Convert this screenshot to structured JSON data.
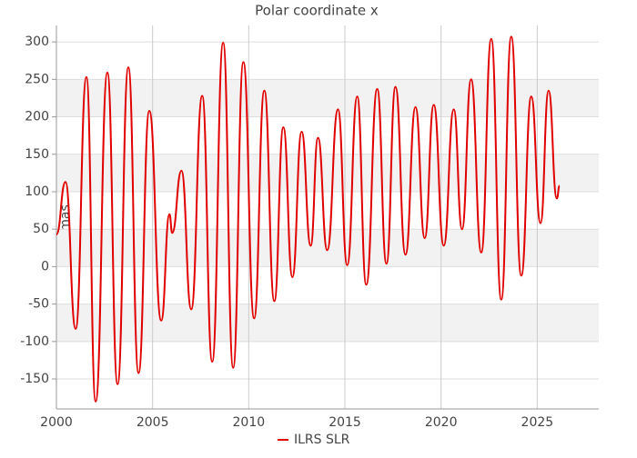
{
  "chart_data": {
    "type": "line",
    "title": "Polar coordinate x",
    "y_label": "mas",
    "x": [
      2000.0,
      2000.47,
      2001.0,
      2001.56,
      2002.04,
      2002.65,
      2003.18,
      2003.74,
      2004.27,
      2004.83,
      2005.45,
      2005.88,
      2006.02,
      2006.5,
      2007.01,
      2007.58,
      2008.1,
      2008.67,
      2009.19,
      2009.72,
      2010.28,
      2010.81,
      2011.33,
      2011.8,
      2012.27,
      2012.75,
      2013.22,
      2013.6,
      2014.08,
      2014.64,
      2015.12,
      2015.64,
      2016.11,
      2016.68,
      2017.16,
      2017.63,
      2018.15,
      2018.67,
      2019.15,
      2019.62,
      2020.14,
      2020.66,
      2021.09,
      2021.56,
      2022.09,
      2022.61,
      2023.13,
      2023.65,
      2024.17,
      2024.69,
      2025.17,
      2025.59,
      2026.02,
      2026.16
    ],
    "series": [
      {
        "name": "ILRS SLR",
        "color": "#e00000",
        "values": [
          43,
          113,
          -83,
          253,
          -180,
          259,
          -157,
          266,
          -142,
          208,
          -72,
          70,
          45,
          128,
          -57,
          228,
          -127,
          299,
          -135,
          273,
          -69,
          235,
          -46,
          186,
          -14,
          180,
          28,
          172,
          22,
          210,
          2,
          227,
          -24,
          237,
          4,
          240,
          16,
          213,
          38,
          216,
          28,
          210,
          50,
          250,
          19,
          304,
          -44,
          307,
          -12,
          227,
          58,
          235,
          91,
          108
        ]
      }
    ],
    "xlim": [
      2000,
      2028.2
    ],
    "xticks": [
      2000,
      2005,
      2010,
      2015,
      2020,
      2025
    ],
    "ylim": [
      -190,
      322
    ],
    "yticks": [
      -150,
      -100,
      -50,
      0,
      50,
      100,
      150,
      200,
      250,
      300
    ],
    "grid": true,
    "legend": "bottom"
  }
}
